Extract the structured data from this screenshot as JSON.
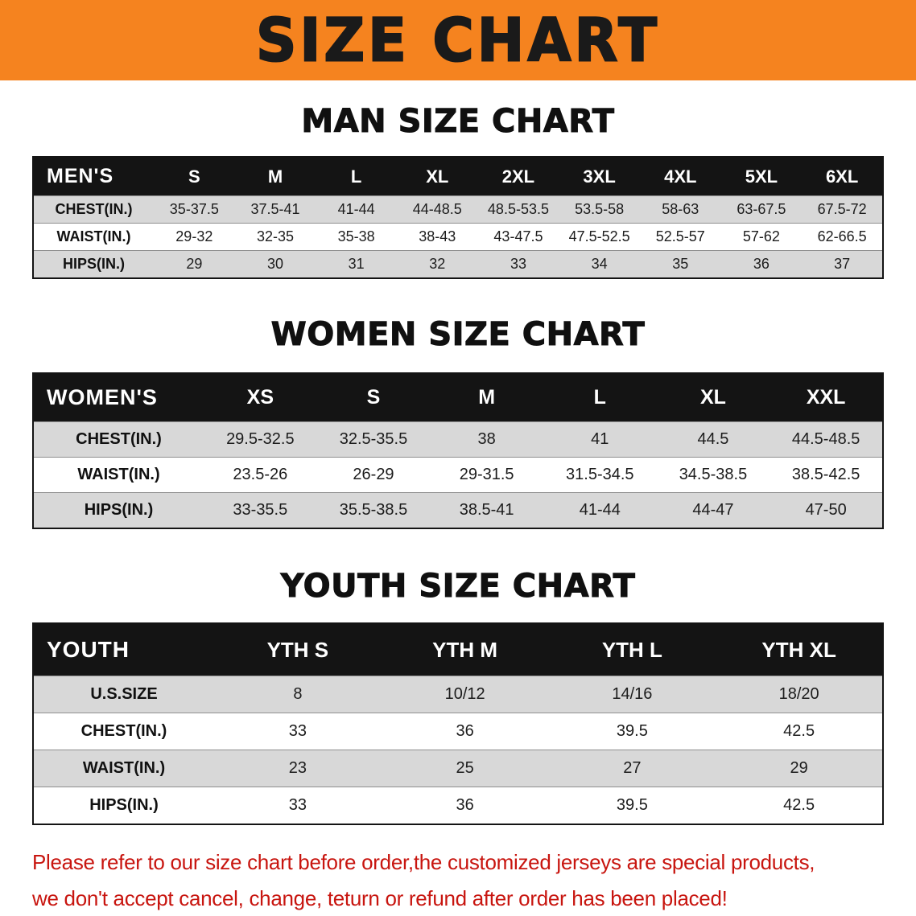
{
  "banner": {
    "title": "SIZE CHART"
  },
  "colors": {
    "banner_bg": "#f5831f",
    "banner_text": "#1a1a1a",
    "table_header_bg": "#141414",
    "table_header_text": "#ffffff",
    "row_stripe": "#d8d8d8",
    "note_red": "#c8150f"
  },
  "chart_data": [
    {
      "type": "table",
      "title": "MAN SIZE CHART",
      "columns": [
        "MEN'S",
        "S",
        "M",
        "L",
        "XL",
        "2XL",
        "3XL",
        "4XL",
        "5XL",
        "6XL"
      ],
      "rows": [
        [
          "CHEST(IN.)",
          "35-37.5",
          "37.5-41",
          "41-44",
          "44-48.5",
          "48.5-53.5",
          "53.5-58",
          "58-63",
          "63-67.5",
          "67.5-72"
        ],
        [
          "WAIST(IN.)",
          "29-32",
          "32-35",
          "35-38",
          "38-43",
          "43-47.5",
          "47.5-52.5",
          "52.5-57",
          "57-62",
          "62-66.5"
        ],
        [
          "HIPS(IN.)",
          "29",
          "30",
          "31",
          "32",
          "33",
          "34",
          "35",
          "36",
          "37"
        ]
      ]
    },
    {
      "type": "table",
      "title": "WOMEN SIZE CHART",
      "columns": [
        "WOMEN'S",
        "XS",
        "S",
        "M",
        "L",
        "XL",
        "XXL"
      ],
      "rows": [
        [
          "CHEST(IN.)",
          "29.5-32.5",
          "32.5-35.5",
          "38",
          "41",
          "44.5",
          "44.5-48.5"
        ],
        [
          "WAIST(IN.)",
          "23.5-26",
          "26-29",
          "29-31.5",
          "31.5-34.5",
          "34.5-38.5",
          "38.5-42.5"
        ],
        [
          "HIPS(IN.)",
          "33-35.5",
          "35.5-38.5",
          "38.5-41",
          "41-44",
          "44-47",
          "47-50"
        ]
      ]
    },
    {
      "type": "table",
      "title": "YOUTH SIZE CHART",
      "columns": [
        "YOUTH",
        "YTH S",
        "YTH M",
        "YTH L",
        "YTH XL"
      ],
      "rows": [
        [
          "U.S.SIZE",
          "8",
          "10/12",
          "14/16",
          "18/20"
        ],
        [
          "CHEST(IN.)",
          "33",
          "36",
          "39.5",
          "42.5"
        ],
        [
          "WAIST(IN.)",
          "23",
          "25",
          "27",
          "29"
        ],
        [
          "HIPS(IN.)",
          "33",
          "36",
          "39.5",
          "42.5"
        ]
      ]
    }
  ],
  "note": {
    "line1": "Please refer to our size chart before order,the customized jerseys are special products,",
    "line2": "we don't accept cancel, change, teturn or refund after order has been placed!"
  }
}
